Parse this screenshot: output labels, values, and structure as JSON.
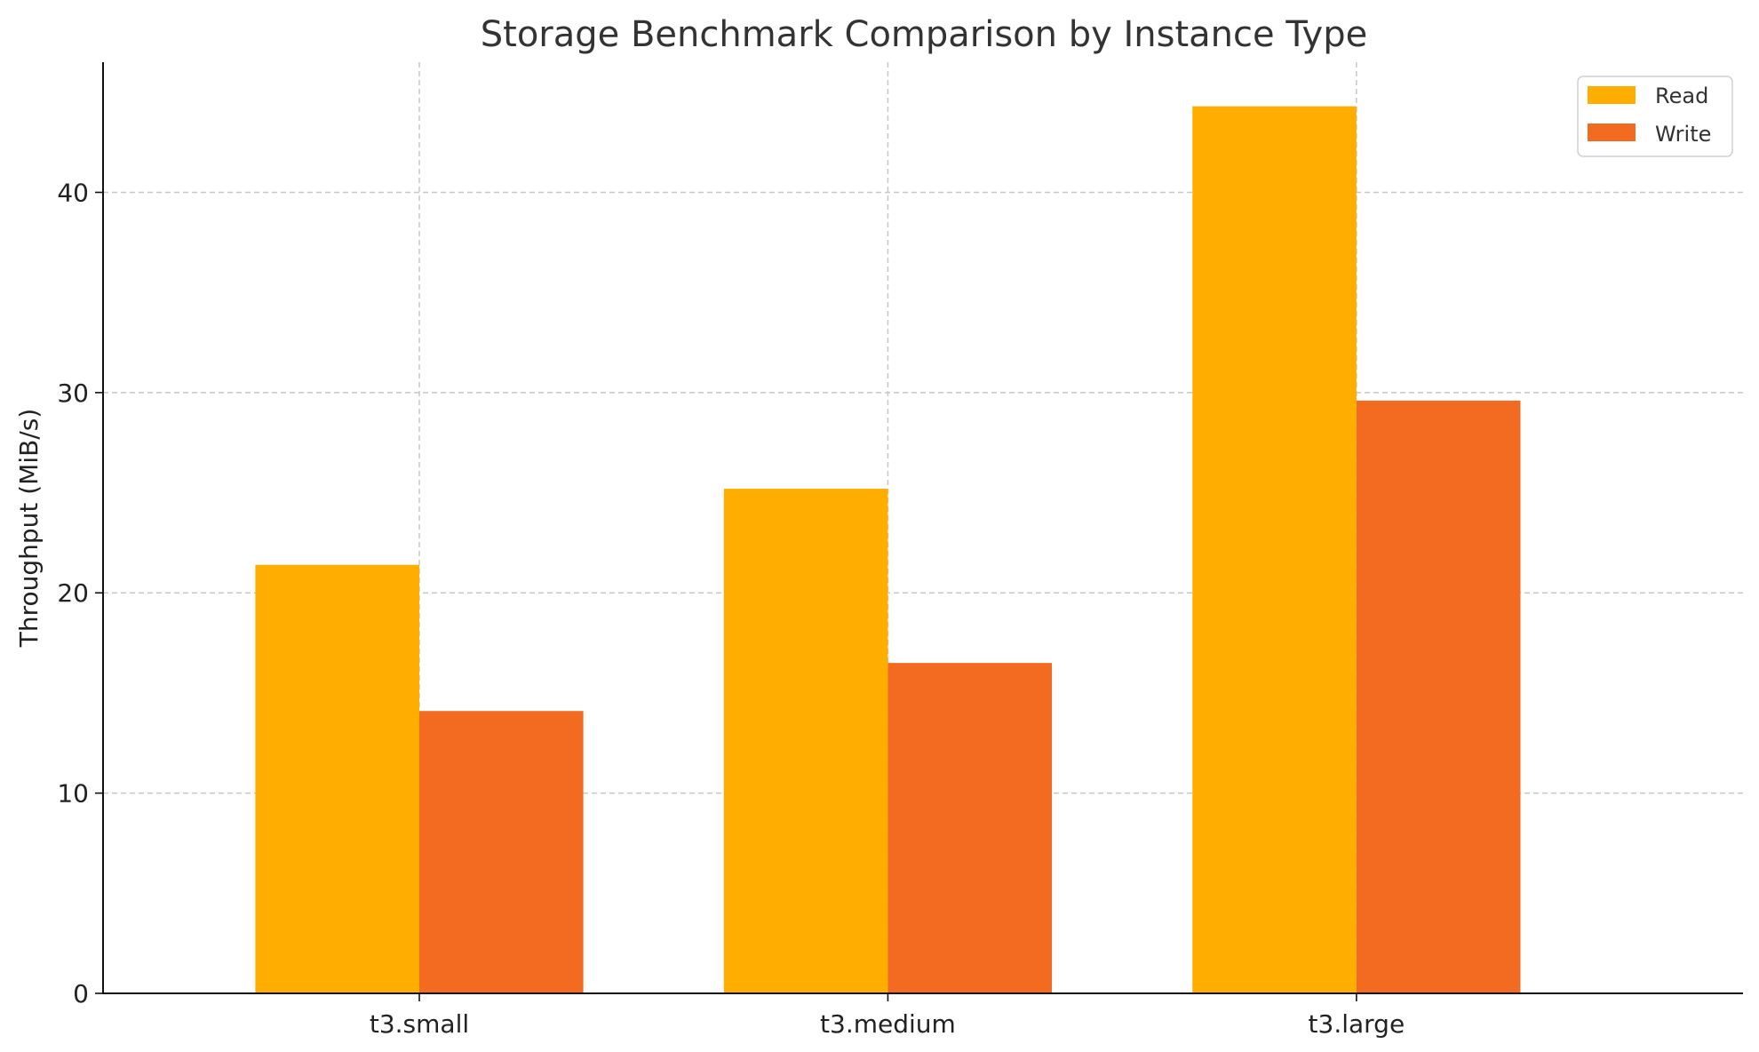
{
  "chart_data": {
    "type": "bar",
    "title": "Storage Benchmark Comparison by Instance Type",
    "xlabel": "",
    "ylabel": "Throughput (MiB/s)",
    "categories": [
      "t3.small",
      "t3.medium",
      "t3.large"
    ],
    "series": [
      {
        "name": "Read",
        "values": [
          21.4,
          25.2,
          44.3
        ],
        "color": "#ffae00"
      },
      {
        "name": "Write",
        "values": [
          14.1,
          16.5,
          29.6
        ],
        "color": "#f26b21"
      }
    ],
    "ylim": [
      0,
      46.5
    ],
    "yticks": [
      0,
      10,
      20,
      30,
      40
    ],
    "grid": true,
    "legend_position": "top-right"
  }
}
